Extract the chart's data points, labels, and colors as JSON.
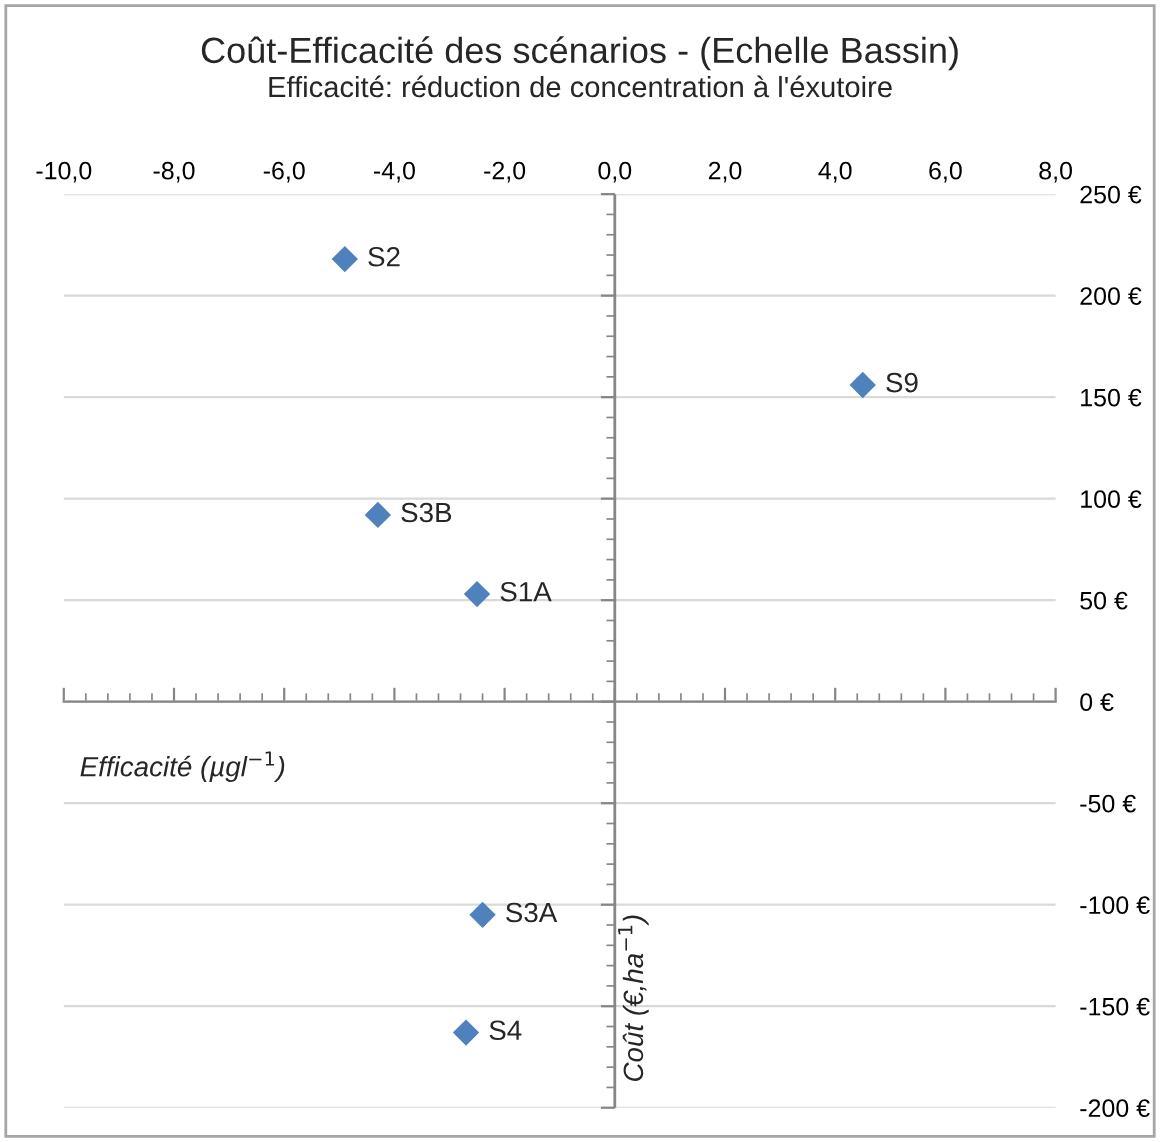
{
  "chart_data": {
    "type": "scatter",
    "title": "Coût-Efficacité des scénarios - (Echelle Bassin)",
    "subtitle": "Efficacité: réduction de concentration à l'éxutoire",
    "xlabel": "Efficacité (µgl$^{−1}$)",
    "ylabel": "Coût (€,ha$^{−1}$)",
    "series": [
      {
        "color": "#4f81bd",
        "x": [
          -4.9,
          4.5,
          -4.3,
          -2.5,
          -2.4,
          -2.7
        ],
        "values": [
          218,
          156,
          92,
          53,
          -105,
          -163
        ]
      }
    ],
    "annotations": [
      {
        "text": "S2",
        "x": -4.9,
        "y": 218
      },
      {
        "text": "S9",
        "x": 4.5,
        "y": 156
      },
      {
        "text": "S3B",
        "x": -4.3,
        "y": 92
      },
      {
        "text": "S1A",
        "x": -2.5,
        "y": 53
      },
      {
        "text": "S3A",
        "x": -2.4,
        "y": -105
      },
      {
        "text": "S4",
        "x": -2.7,
        "y": -163
      }
    ],
    "xlim": [
      -10,
      8
    ],
    "xticks": [
      {
        "value": -10,
        "label": "-10,0"
      },
      {
        "value": -8,
        "label": "-8,0"
      },
      {
        "value": -6,
        "label": "-6,0"
      },
      {
        "value": -4,
        "label": "-4,0"
      },
      {
        "value": -2,
        "label": "-2,0"
      },
      {
        "value": 0,
        "label": "0,0"
      },
      {
        "value": 2,
        "label": "2,0"
      },
      {
        "value": 4,
        "label": "4,0"
      },
      {
        "value": 6,
        "label": "6,0"
      },
      {
        "value": 8,
        "label": "8,0"
      }
    ],
    "ylim": [
      -200,
      250
    ],
    "yticks": [
      {
        "value": -200,
        "label": "-200 €"
      },
      {
        "value": -150,
        "label": "-150 €"
      },
      {
        "value": -100,
        "label": "-100 €"
      },
      {
        "value": -50,
        "label": "-50 €"
      },
      {
        "value": 0,
        "label": "0 €"
      },
      {
        "value": 50,
        "label": "50 €"
      },
      {
        "value": 100,
        "label": "100 €"
      },
      {
        "value": 150,
        "label": "150 €"
      },
      {
        "value": 200,
        "label": "200 €"
      },
      {
        "value": 250,
        "label": "250 €"
      }
    ],
    "ref_lines": [
      {
        "axis": "x",
        "value": 0,
        "color": "#868686"
      }
    ],
    "grid": "y",
    "marker": "diamond",
    "legend": false
  }
}
